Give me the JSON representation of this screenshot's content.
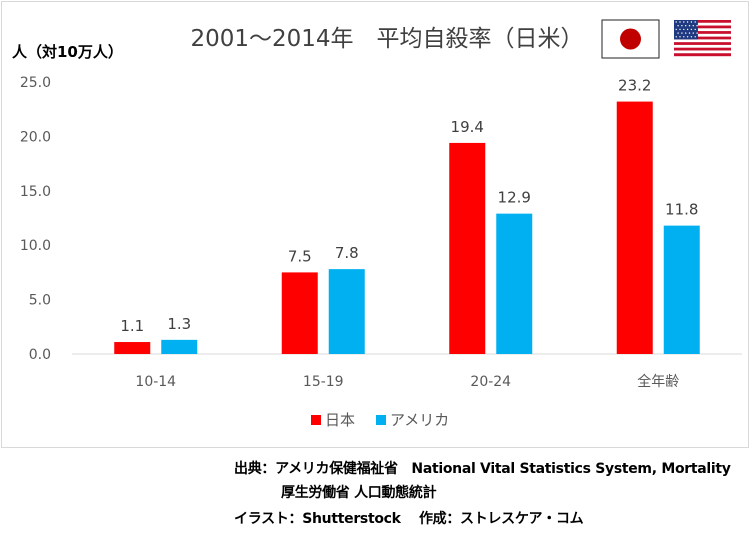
{
  "chart_data": {
    "type": "bar",
    "title": "2001～2014年　平均自殺率（日米）",
    "ylabel": "人（対10万人）",
    "xlabel": "",
    "categories": [
      "10-14",
      "15-19",
      "20-24",
      "全年齢"
    ],
    "series": [
      {
        "name": "日本",
        "color": "#ff0000",
        "values": [
          1.1,
          7.5,
          19.4,
          23.2
        ]
      },
      {
        "name": "アメリカ",
        "color": "#00b0f0",
        "values": [
          1.3,
          7.8,
          12.9,
          11.8
        ]
      }
    ],
    "ylim": [
      0,
      25
    ],
    "yticks": [
      "0.0",
      "5.0",
      "10.0",
      "15.0",
      "20.0",
      "25.0"
    ],
    "grid": false,
    "legend": "bottom-center"
  },
  "flags": {
    "japan": "japan-flag",
    "usa": "usa-flag"
  },
  "footer": {
    "line1": "出典：アメリカ保健福祉省　National Vital Statistics System, Mortality",
    "line2": "厚生労働省 人口動態統計",
    "line3": "イラスト：Shutterstock　 作成：ストレスケア・コム"
  }
}
